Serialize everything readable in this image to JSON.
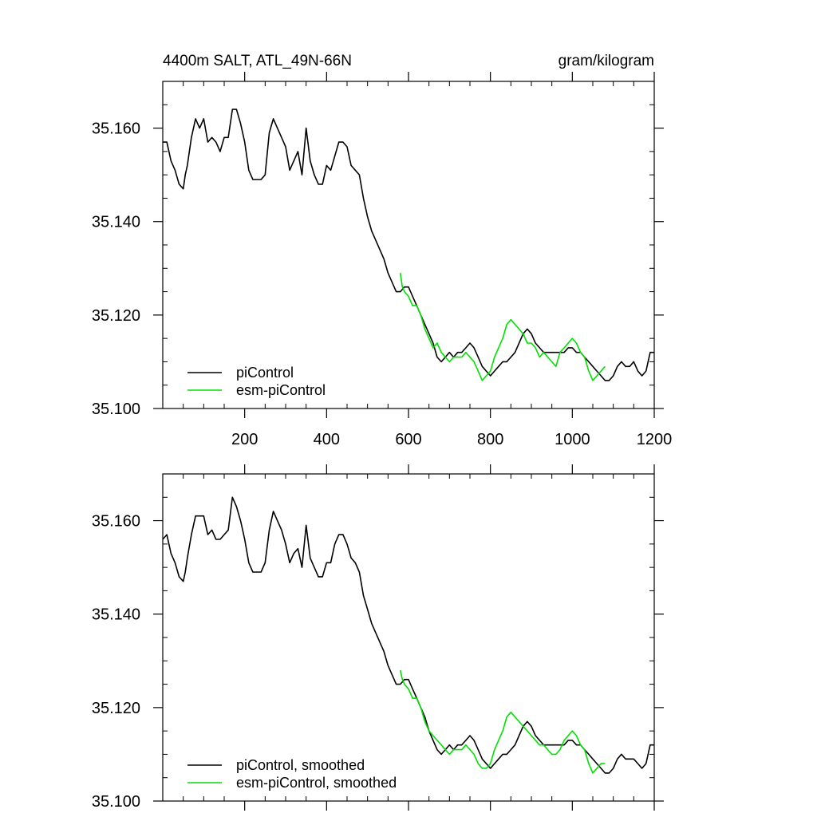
{
  "chart_data": [
    {
      "type": "line",
      "title": "4400m SALT, ATL_49N-66N",
      "units": "gram/kilogram",
      "xlim": [
        0,
        1200
      ],
      "ylim": [
        35.1,
        35.17
      ],
      "xticks": [
        200,
        400,
        600,
        800,
        1000,
        1200
      ],
      "xtick_labels": [
        "200",
        "400",
        "600",
        "800",
        "1000",
        "1200"
      ],
      "yticks": [
        35.1,
        35.12,
        35.14,
        35.16
      ],
      "ytick_labels": [
        "35.100",
        "35.120",
        "35.140",
        "35.160"
      ],
      "legend_position": "bottom-left",
      "series": [
        {
          "name": "piControl",
          "color": "#000000",
          "x": [
            0,
            10,
            20,
            30,
            40,
            50,
            55,
            60,
            70,
            80,
            90,
            100,
            110,
            120,
            130,
            140,
            150,
            160,
            170,
            180,
            190,
            200,
            210,
            220,
            230,
            240,
            250,
            260,
            270,
            280,
            290,
            300,
            310,
            320,
            330,
            340,
            350,
            360,
            370,
            380,
            390,
            400,
            410,
            420,
            430,
            440,
            450,
            460,
            470,
            480,
            490,
            500,
            510,
            520,
            530,
            540,
            550,
            560,
            570,
            580,
            590,
            600,
            610,
            620,
            630,
            640,
            650,
            660,
            670,
            680,
            690,
            700,
            710,
            720,
            730,
            740,
            750,
            760,
            770,
            780,
            790,
            800,
            810,
            820,
            830,
            840,
            850,
            860,
            870,
            880,
            890,
            900,
            910,
            920,
            930,
            940,
            950,
            960,
            970,
            980,
            990,
            1000,
            1010,
            1020,
            1030,
            1040,
            1050,
            1060,
            1070,
            1080,
            1090,
            1100,
            1110,
            1120,
            1130,
            1140,
            1150,
            1160,
            1170,
            1180,
            1190,
            1200
          ],
          "values": [
            35.157,
            35.157,
            35.153,
            35.151,
            35.148,
            35.147,
            35.15,
            35.152,
            35.158,
            35.162,
            35.16,
            35.162,
            35.157,
            35.158,
            35.157,
            35.155,
            35.158,
            35.158,
            35.164,
            35.164,
            35.161,
            35.157,
            35.151,
            35.149,
            35.149,
            35.149,
            35.15,
            35.159,
            35.162,
            35.16,
            35.158,
            35.156,
            35.151,
            35.153,
            35.155,
            35.15,
            35.16,
            35.153,
            35.15,
            35.148,
            35.148,
            35.152,
            35.151,
            35.154,
            35.157,
            35.157,
            35.156,
            35.152,
            35.151,
            35.15,
            35.145,
            35.141,
            35.138,
            35.136,
            35.134,
            35.132,
            35.129,
            35.127,
            35.125,
            35.125,
            35.126,
            35.126,
            35.124,
            35.122,
            35.12,
            35.118,
            35.116,
            35.114,
            35.111,
            35.11,
            35.111,
            35.112,
            35.111,
            35.112,
            35.112,
            35.113,
            35.114,
            35.113,
            35.111,
            35.109,
            35.108,
            35.107,
            35.108,
            35.109,
            35.11,
            35.11,
            35.111,
            35.112,
            35.114,
            35.116,
            35.117,
            35.116,
            35.114,
            35.113,
            35.112,
            35.112,
            35.112,
            35.112,
            35.112,
            35.112,
            35.113,
            35.113,
            35.112,
            35.112,
            35.111,
            35.11,
            35.109,
            35.108,
            35.107,
            35.106,
            35.106,
            35.107,
            35.109,
            35.11,
            35.109,
            35.109,
            35.11,
            35.108,
            35.107,
            35.108,
            35.112,
            35.112
          ]
        },
        {
          "name": "esm-piControl",
          "color": "#00e000",
          "x": [
            580,
            585,
            590,
            600,
            610,
            620,
            630,
            640,
            650,
            660,
            670,
            680,
            690,
            700,
            710,
            720,
            730,
            740,
            750,
            760,
            770,
            780,
            790,
            800,
            810,
            820,
            830,
            840,
            850,
            860,
            870,
            880,
            890,
            900,
            910,
            920,
            930,
            940,
            950,
            960,
            970,
            980,
            990,
            1000,
            1010,
            1020,
            1030,
            1040,
            1050,
            1060,
            1070,
            1080
          ],
          "values": [
            35.129,
            35.126,
            35.125,
            35.124,
            35.122,
            35.122,
            35.12,
            35.117,
            35.115,
            35.113,
            35.114,
            35.112,
            35.111,
            35.11,
            35.111,
            35.111,
            35.111,
            35.112,
            35.111,
            35.11,
            35.108,
            35.106,
            35.107,
            35.108,
            35.111,
            35.113,
            35.115,
            35.118,
            35.119,
            35.118,
            35.117,
            35.116,
            35.114,
            35.114,
            35.113,
            35.111,
            35.112,
            35.111,
            35.11,
            35.109,
            35.112,
            35.113,
            35.114,
            35.115,
            35.114,
            35.112,
            35.111,
            35.108,
            35.106,
            35.107,
            35.108,
            35.109
          ]
        }
      ]
    },
    {
      "type": "line",
      "title": "",
      "units": "",
      "xlim": [
        0,
        1200
      ],
      "ylim": [
        35.1,
        35.17
      ],
      "xticks": [
        200,
        400,
        600,
        800,
        1000,
        1200
      ],
      "xtick_labels": [],
      "yticks": [
        35.1,
        35.12,
        35.14,
        35.16
      ],
      "ytick_labels": [
        "35.100",
        "35.120",
        "35.140",
        "35.160"
      ],
      "legend_position": "bottom-left",
      "series": [
        {
          "name": "piControl, smoothed",
          "color": "#000000",
          "x": [
            0,
            10,
            20,
            30,
            40,
            50,
            55,
            60,
            70,
            80,
            90,
            100,
            110,
            120,
            130,
            140,
            150,
            160,
            170,
            180,
            190,
            200,
            210,
            220,
            230,
            240,
            250,
            260,
            270,
            280,
            290,
            300,
            310,
            320,
            330,
            340,
            350,
            360,
            370,
            380,
            390,
            400,
            410,
            420,
            430,
            440,
            450,
            460,
            470,
            480,
            490,
            500,
            510,
            520,
            530,
            540,
            550,
            560,
            570,
            580,
            590,
            600,
            610,
            620,
            630,
            640,
            650,
            660,
            670,
            680,
            690,
            700,
            710,
            720,
            730,
            740,
            750,
            760,
            770,
            780,
            790,
            800,
            810,
            820,
            830,
            840,
            850,
            860,
            870,
            880,
            890,
            900,
            910,
            920,
            930,
            940,
            950,
            960,
            970,
            980,
            990,
            1000,
            1010,
            1020,
            1030,
            1040,
            1050,
            1060,
            1070,
            1080,
            1090,
            1100,
            1110,
            1120,
            1130,
            1140,
            1150,
            1160,
            1170,
            1180,
            1190,
            1200
          ],
          "values": [
            35.156,
            35.157,
            35.153,
            35.151,
            35.148,
            35.147,
            35.149,
            35.152,
            35.157,
            35.161,
            35.161,
            35.161,
            35.157,
            35.158,
            35.156,
            35.156,
            35.157,
            35.158,
            35.165,
            35.163,
            35.16,
            35.156,
            35.151,
            35.149,
            35.149,
            35.149,
            35.151,
            35.158,
            35.162,
            35.16,
            35.158,
            35.155,
            35.151,
            35.153,
            35.154,
            35.15,
            35.159,
            35.152,
            35.15,
            35.148,
            35.148,
            35.151,
            35.151,
            35.155,
            35.157,
            35.157,
            35.155,
            35.152,
            35.151,
            35.149,
            35.144,
            35.141,
            35.138,
            35.136,
            35.134,
            35.132,
            35.129,
            35.127,
            35.125,
            35.125,
            35.126,
            35.126,
            35.124,
            35.122,
            35.12,
            35.118,
            35.115,
            35.113,
            35.111,
            35.11,
            35.111,
            35.112,
            35.111,
            35.112,
            35.112,
            35.113,
            35.114,
            35.113,
            35.111,
            35.109,
            35.108,
            35.107,
            35.108,
            35.109,
            35.11,
            35.11,
            35.111,
            35.112,
            35.114,
            35.116,
            35.117,
            35.116,
            35.114,
            35.113,
            35.112,
            35.112,
            35.112,
            35.112,
            35.112,
            35.112,
            35.113,
            35.113,
            35.112,
            35.112,
            35.111,
            35.11,
            35.109,
            35.108,
            35.107,
            35.106,
            35.106,
            35.107,
            35.109,
            35.11,
            35.109,
            35.109,
            35.109,
            35.108,
            35.107,
            35.108,
            35.112,
            35.112
          ]
        },
        {
          "name": "esm-piControl, smoothed",
          "color": "#00e000",
          "x": [
            580,
            585,
            590,
            600,
            610,
            620,
            630,
            640,
            650,
            660,
            670,
            680,
            690,
            700,
            710,
            720,
            730,
            740,
            750,
            760,
            770,
            780,
            790,
            800,
            810,
            820,
            830,
            840,
            850,
            860,
            870,
            880,
            890,
            900,
            910,
            920,
            930,
            940,
            950,
            960,
            970,
            980,
            990,
            1000,
            1010,
            1020,
            1030,
            1040,
            1050,
            1060,
            1070,
            1080
          ],
          "values": [
            35.128,
            35.126,
            35.125,
            35.124,
            35.122,
            35.122,
            35.12,
            35.117,
            35.115,
            35.114,
            35.113,
            35.112,
            35.111,
            35.11,
            35.111,
            35.111,
            35.111,
            35.112,
            35.111,
            35.11,
            35.108,
            35.107,
            35.107,
            35.108,
            35.111,
            35.113,
            35.115,
            35.118,
            35.119,
            35.118,
            35.117,
            35.116,
            35.115,
            35.114,
            35.113,
            35.112,
            35.112,
            35.111,
            35.11,
            35.11,
            35.111,
            35.113,
            35.114,
            35.115,
            35.114,
            35.112,
            35.111,
            35.108,
            35.106,
            35.107,
            35.108,
            35.108
          ]
        }
      ]
    }
  ]
}
